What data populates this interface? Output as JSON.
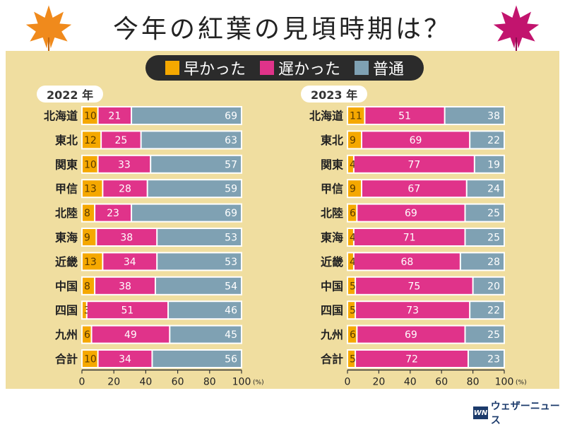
{
  "title": "今年の紅葉の見頃時期は？",
  "legend": [
    {
      "label": "早かった",
      "color": "#f5a800"
    },
    {
      "label": "遅かった",
      "color": "#e0338a"
    },
    {
      "label": "普通",
      "color": "#7fa1b3"
    }
  ],
  "brand": "ウェザーニュース",
  "brand_mark": "WN",
  "chart_data": [
    {
      "type": "bar",
      "stacked": "horizontal",
      "title": "2022 年",
      "categories": [
        "北海道",
        "東北",
        "関東",
        "甲信",
        "北陸",
        "東海",
        "近畿",
        "中国",
        "四国",
        "九州",
        "合計"
      ],
      "series": [
        {
          "name": "早かった",
          "values": [
            10,
            12,
            10,
            13,
            8,
            9,
            13,
            8,
            3,
            6,
            10
          ]
        },
        {
          "name": "遅かった",
          "values": [
            21,
            25,
            33,
            28,
            23,
            38,
            34,
            38,
            51,
            49,
            34
          ]
        },
        {
          "name": "普通",
          "values": [
            69,
            63,
            57,
            59,
            69,
            53,
            53,
            54,
            46,
            45,
            56
          ]
        }
      ],
      "xlim": [
        0,
        100
      ],
      "xticks": [
        0,
        20,
        40,
        60,
        80,
        100
      ],
      "xunit": "(%)"
    },
    {
      "type": "bar",
      "stacked": "horizontal",
      "title": "2023 年",
      "categories": [
        "北海道",
        "東北",
        "関東",
        "甲信",
        "北陸",
        "東海",
        "近畿",
        "中国",
        "四国",
        "九州",
        "合計"
      ],
      "series": [
        {
          "name": "早かった",
          "values": [
            11,
            9,
            4,
            9,
            6,
            4,
            4,
            5,
            5,
            6,
            5
          ]
        },
        {
          "name": "遅かった",
          "values": [
            51,
            69,
            77,
            67,
            69,
            71,
            68,
            75,
            73,
            69,
            72
          ]
        },
        {
          "name": "普通",
          "values": [
            38,
            22,
            19,
            24,
            25,
            25,
            28,
            20,
            22,
            25,
            23
          ]
        }
      ],
      "xlim": [
        0,
        100
      ],
      "xticks": [
        0,
        20,
        40,
        60,
        80,
        100
      ],
      "xunit": "(%)"
    }
  ]
}
